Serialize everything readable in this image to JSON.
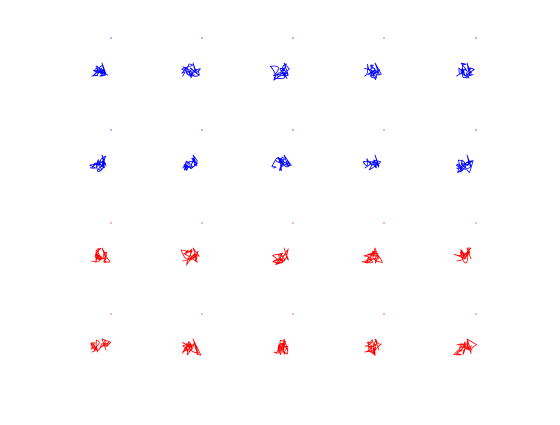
{
  "figure": {
    "rows": 4,
    "cols": 5,
    "row_colors": [
      "#0000ff",
      "#0000ff",
      "#ff0000",
      "#ff0000"
    ]
  }
}
